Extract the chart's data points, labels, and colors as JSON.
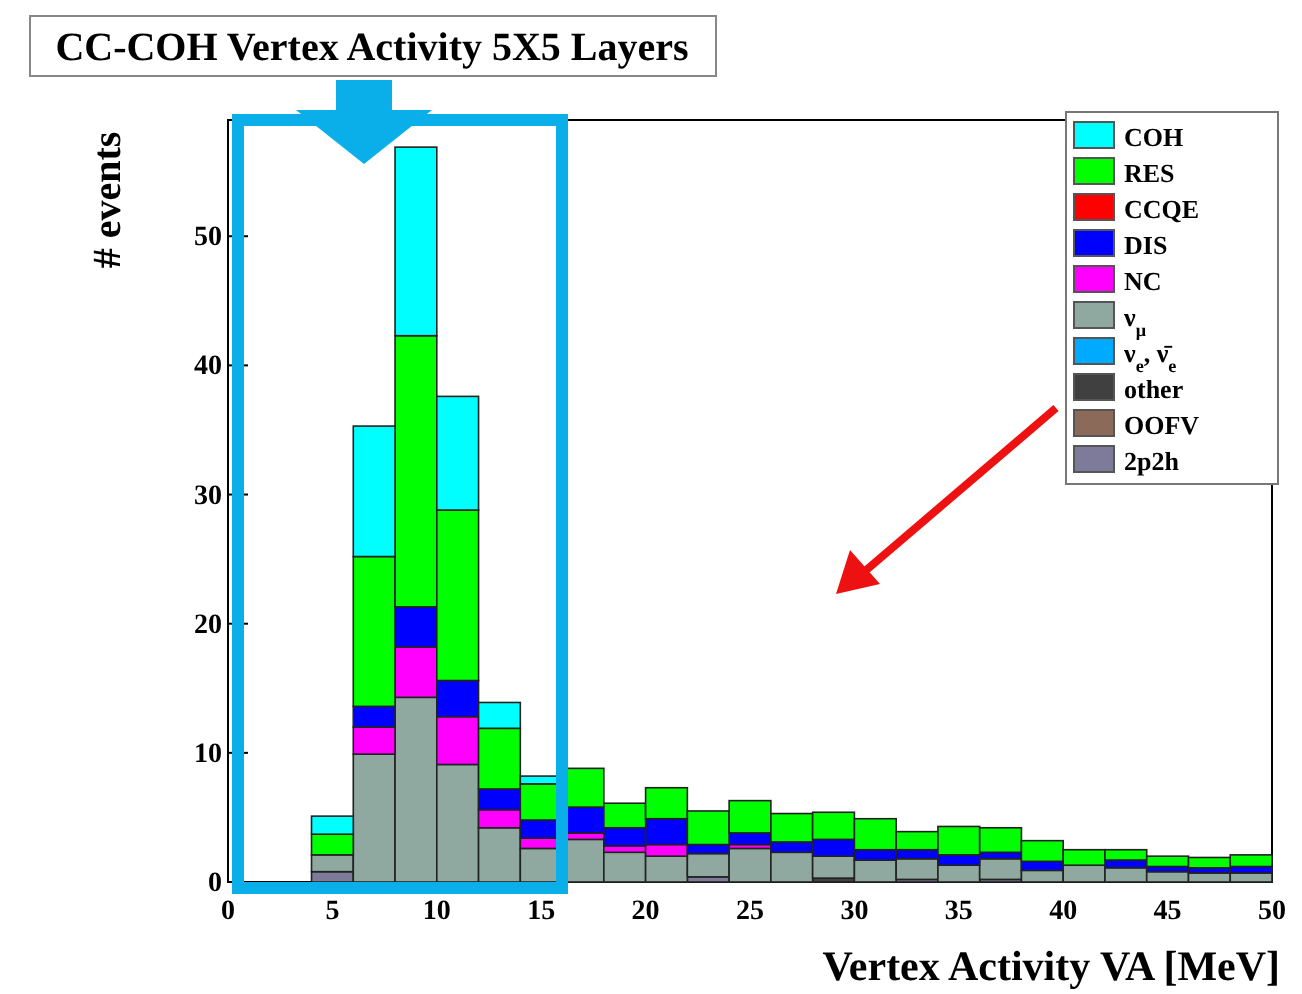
{
  "chart_data": {
    "type": "bar",
    "title": "CC-COH Vertex Activity 5X5 Layers",
    "xlabel": "Vertex Activity VA [MeV]",
    "ylabel": "# events",
    "x": [
      5,
      7,
      9,
      11,
      13,
      15,
      17,
      19,
      21,
      23,
      25,
      27,
      29,
      31,
      33,
      35,
      37,
      39,
      41,
      43,
      45,
      47,
      49
    ],
    "stacked": true,
    "legend": "top right",
    "xlim": [
      0,
      50
    ],
    "xticks": [
      0,
      5,
      10,
      15,
      20,
      25,
      30,
      35,
      40,
      45,
      50
    ],
    "ylim": [
      0,
      59
    ],
    "yticks": [
      0,
      10,
      20,
      30,
      40,
      50
    ],
    "series": [
      {
        "name": "2p2h",
        "color": "#7d7a9a",
        "values": [
          0.8,
          0,
          0,
          0,
          0,
          0,
          0,
          0,
          0,
          0.4,
          0,
          0,
          0,
          0,
          0.2,
          0,
          0.2,
          0,
          0,
          0,
          0,
          0,
          0
        ]
      },
      {
        "name": "OOFV",
        "color": "#8b6a5a",
        "values": [
          0,
          0,
          0,
          0,
          0,
          0,
          0,
          0,
          0,
          0,
          0,
          0,
          0,
          0,
          0,
          0,
          0,
          0,
          0,
          0,
          0,
          0,
          0
        ]
      },
      {
        "name": "other",
        "color": "#404040",
        "values": [
          0,
          0,
          0,
          0,
          0,
          0,
          0,
          0,
          0,
          0,
          0,
          0,
          0.3,
          0,
          0,
          0,
          0,
          0,
          0,
          0,
          0,
          0,
          0
        ]
      },
      {
        "name": "ν$_{e}$, ν̄$_{e}$",
        "color": "#00aaff",
        "values": [
          0,
          0,
          0,
          0,
          0,
          0,
          0,
          0,
          0,
          0,
          0,
          0,
          0,
          0,
          0,
          0,
          0,
          0,
          0,
          0,
          0,
          0,
          0
        ]
      },
      {
        "name": "ν$_{μ}$",
        "color": "#8fa8a0",
        "values": [
          1.3,
          9.9,
          14.3,
          9.1,
          4.2,
          2.6,
          3.3,
          2.3,
          2.0,
          1.8,
          2.6,
          2.3,
          1.7,
          1.7,
          1.6,
          1.3,
          1.6,
          0.9,
          1.3,
          1.1,
          0.8,
          0.7,
          0.7
        ]
      },
      {
        "name": "NC",
        "color": "#ff00ff",
        "values": [
          0,
          2.1,
          3.9,
          3.7,
          1.4,
          0.8,
          0.5,
          0.5,
          0.9,
          0,
          0.3,
          0,
          0,
          0,
          0,
          0,
          0,
          0,
          0,
          0,
          0,
          0,
          0
        ]
      },
      {
        "name": "DIS",
        "color": "#0000ff",
        "values": [
          0,
          1.6,
          3.1,
          2.8,
          1.6,
          1.4,
          2.0,
          1.4,
          2.0,
          0.7,
          0.9,
          0.8,
          1.3,
          0.8,
          0.7,
          0.8,
          0.5,
          0.7,
          0,
          0.6,
          0.4,
          0.4,
          0.5
        ]
      },
      {
        "name": "CCQE",
        "color": "#ff0000",
        "values": [
          0,
          0,
          0,
          0,
          0,
          0,
          0,
          0,
          0,
          0,
          0,
          0,
          0,
          0,
          0,
          0,
          0,
          0,
          0,
          0,
          0,
          0,
          0
        ]
      },
      {
        "name": "RES",
        "color": "#00ff00",
        "values": [
          1.6,
          11.6,
          21.0,
          13.2,
          4.7,
          2.8,
          3.0,
          1.9,
          2.4,
          2.6,
          2.5,
          2.2,
          2.1,
          2.4,
          1.4,
          2.2,
          1.9,
          1.6,
          1.2,
          0.8,
          0.8,
          0.8,
          0.9
        ]
      },
      {
        "name": "COH",
        "color": "#00ffff",
        "values": [
          1.4,
          10.1,
          14.6,
          8.8,
          2.0,
          0.6,
          0,
          0,
          0,
          0,
          0,
          0,
          0,
          0,
          0,
          0,
          0,
          0,
          0,
          0,
          0,
          0,
          0
        ]
      }
    ]
  }
}
